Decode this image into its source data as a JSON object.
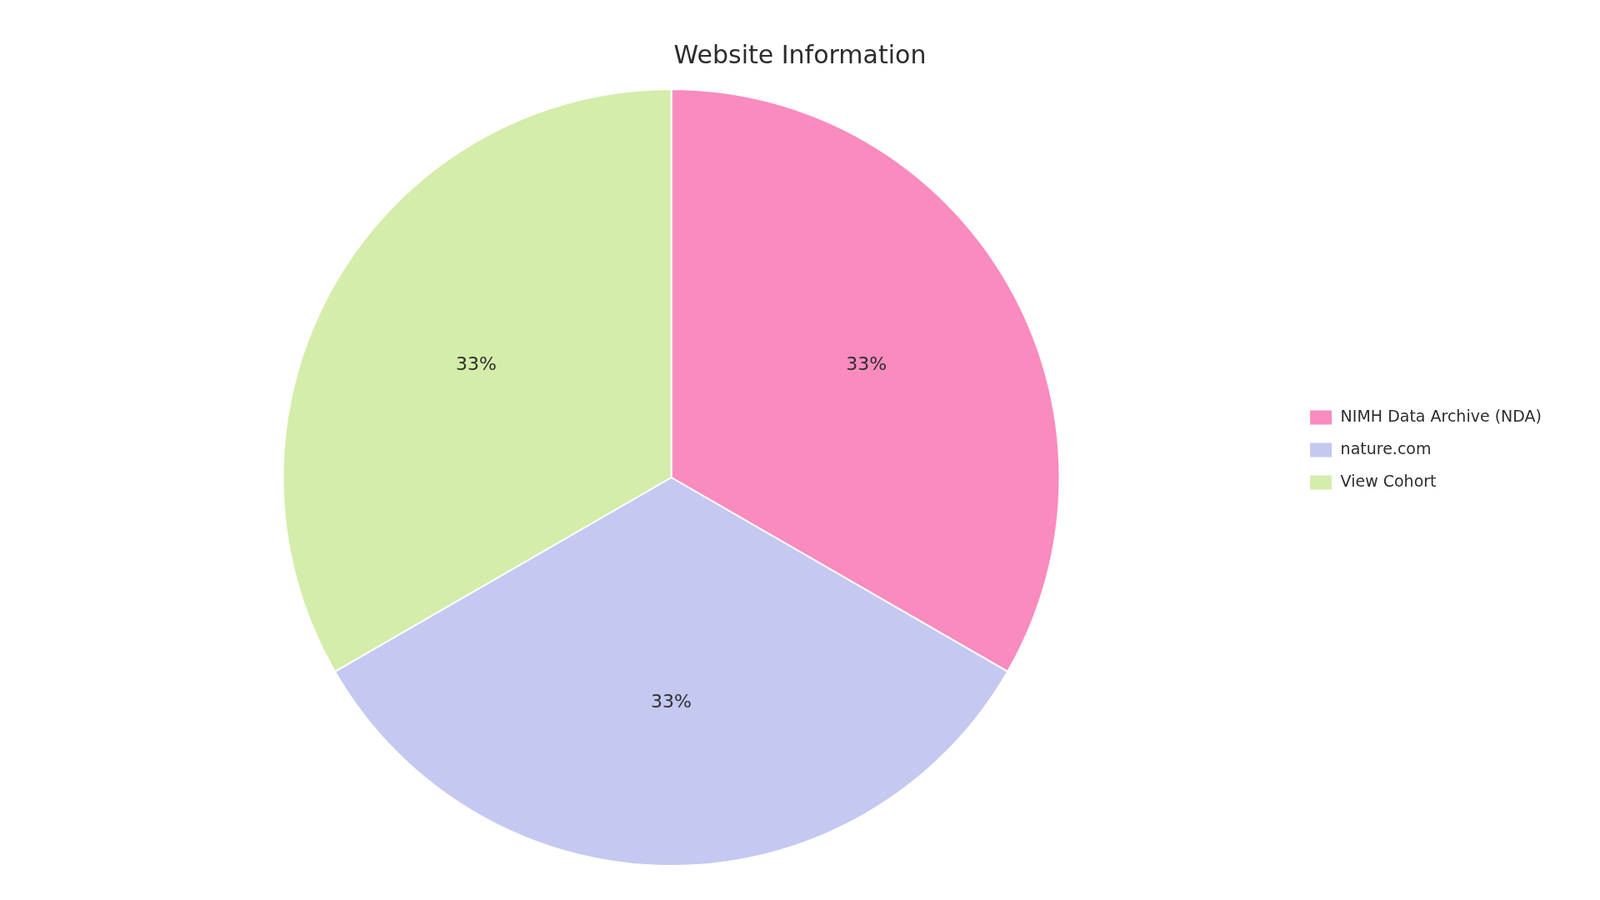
{
  "chart_data": {
    "type": "pie",
    "title": "Website Information",
    "categories": [
      "NIMH Data Archive (NDA)",
      "nature.com",
      "View Cohort"
    ],
    "values": [
      33.33,
      33.34,
      33.33
    ],
    "value_labels": [
      "33%",
      "33%",
      "33%"
    ],
    "colors": [
      "#f98bbf",
      "#c5c8f0",
      "#d4edaa"
    ],
    "data_labels": true,
    "legend": "right"
  }
}
